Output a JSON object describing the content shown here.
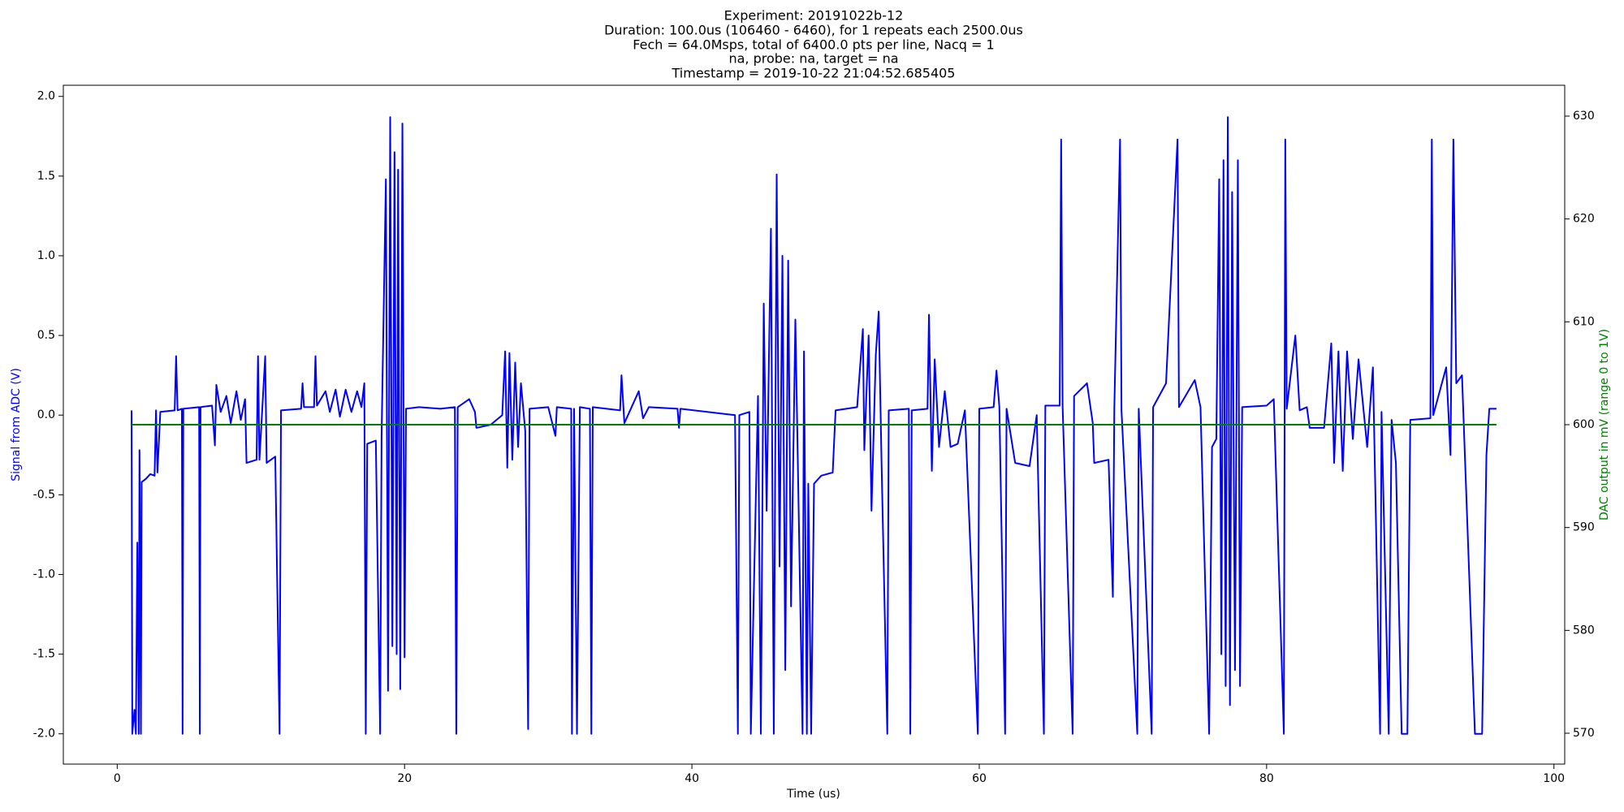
{
  "chart_data": {
    "type": "line",
    "title": [
      "Experiment: 20191022b-12",
      "Duration: 100.0us (106460 - 6460), for 1 repeats each 2500.0us",
      "Fech = 64.0Msps, total of 6400.0 pts per line, Nacq = 1",
      "na, probe: na, target = na",
      "Timestamp = 2019-10-22 21:04:52.685405"
    ],
    "x_label": "Time (us)",
    "y_label": "Signal from ADC (V)",
    "y_label_color": "#0000ff",
    "y2_label": "DAC output in mV (range 0 to 1V)",
    "y2_label_color": "#008000",
    "xlim": [
      -3.75,
      100.75
    ],
    "xticks": [
      0,
      20,
      40,
      60,
      80,
      100
    ],
    "ylim": [
      -2.19,
      2.07
    ],
    "yticks": [
      {
        "value": -2,
        "label": "-2.0"
      },
      {
        "value": -1.5,
        "label": "-1.5"
      },
      {
        "value": -1,
        "label": "-1.0"
      },
      {
        "value": -0.5,
        "label": "-0.5"
      },
      {
        "value": 0,
        "label": "0.0"
      },
      {
        "value": 0.5,
        "label": "0.5"
      },
      {
        "value": 1,
        "label": "1.0"
      },
      {
        "value": 1.5,
        "label": "1.5"
      },
      {
        "value": 2,
        "label": "2.0"
      }
    ],
    "y2lim": [
      567,
      633
    ],
    "y2ticks": [
      570,
      580,
      590,
      600,
      610,
      620,
      630
    ],
    "series": [
      {
        "color": "#0000ff",
        "x": [
          1.0,
          1.05,
          1.2,
          1.3,
          1.4,
          1.5,
          1.55,
          1.65,
          1.7,
          2.0,
          2.3,
          2.6,
          2.7,
          2.8,
          3.0,
          4.0,
          4.1,
          4.2,
          4.5,
          4.55,
          4.6,
          5.7,
          5.75,
          5.8,
          6.6,
          6.8,
          6.9,
          7.2,
          7.6,
          7.9,
          8.3,
          8.6,
          8.9,
          9.0,
          9.7,
          9.8,
          9.9,
          10.3,
          10.4,
          11.0,
          11.3,
          11.4,
          12.8,
          12.9,
          13.0,
          13.7,
          13.8,
          13.9,
          14.5,
          14.8,
          15.2,
          15.5,
          15.9,
          16.3,
          16.7,
          17.0,
          17.2,
          17.3,
          17.4,
          18.0,
          18.3,
          18.4,
          18.7,
          18.85,
          19.0,
          19.15,
          19.3,
          19.45,
          19.55,
          19.7,
          19.85,
          20.0,
          20.1,
          21.0,
          22.5,
          23.5,
          23.6,
          23.7,
          24.5,
          24.9,
          25.0,
          26.0,
          26.8,
          27.0,
          27.15,
          27.3,
          27.5,
          27.7,
          27.9,
          28.1,
          28.4,
          28.6,
          28.7,
          30.0,
          30.5,
          30.6,
          31.6,
          31.65,
          31.8,
          32.0,
          32.2,
          32.9,
          33.0,
          33.1,
          35.0,
          35.1,
          35.3,
          36.3,
          36.6,
          37.0,
          39.0,
          39.1,
          39.2,
          43.0,
          43.2,
          43.3,
          44.0,
          44.1,
          44.6,
          44.8,
          45.0,
          45.2,
          45.5,
          45.7,
          45.9,
          46.1,
          46.3,
          46.5,
          46.7,
          46.9,
          47.2,
          47.7,
          47.8,
          48.0,
          48.1,
          48.3,
          48.5,
          49.0,
          49.8,
          50.0,
          51.5,
          51.9,
          52.0,
          52.3,
          52.5,
          52.8,
          53.0,
          53.2,
          53.6,
          53.7,
          55.1,
          55.2,
          55.3,
          56.4,
          56.5,
          56.7,
          56.9,
          57.2,
          57.6,
          58.0,
          58.5,
          59.0,
          59.9,
          60.0,
          61.0,
          61.2,
          61.4,
          61.8,
          61.9,
          62.5,
          63.5,
          64.0,
          64.5,
          64.6,
          65.6,
          65.7,
          65.8,
          66.5,
          66.6,
          67.5,
          67.9,
          68.0,
          69.0,
          69.3,
          69.4,
          69.8,
          69.9,
          71.0,
          71.1,
          72.0,
          72.1,
          73.0,
          73.8,
          73.9,
          75.0,
          75.4,
          76.0,
          76.2,
          76.5,
          76.7,
          76.85,
          77.0,
          77.15,
          77.3,
          77.45,
          77.6,
          77.8,
          78.0,
          78.15,
          78.3,
          80.0,
          80.5,
          81.2,
          81.3,
          81.4,
          82.0,
          82.3,
          82.8,
          83.0,
          84.0,
          84.5,
          84.7,
          85.0,
          85.3,
          85.6,
          86.0,
          86.4,
          87.0,
          87.4,
          87.9,
          88.0,
          88.5,
          88.7,
          89.0,
          89.4,
          89.8,
          90.0,
          91.4,
          91.5,
          91.6,
          92.5,
          92.8,
          93.0,
          93.2,
          93.6,
          94.5,
          95.0,
          95.3,
          95.5,
          96.0
        ],
        "values": [
          0.03,
          -2,
          -1.85,
          -2,
          -0.8,
          -2,
          -0.22,
          -2,
          -0.42,
          -0.4,
          -0.37,
          -0.38,
          0.03,
          -0.36,
          0.02,
          0.03,
          0.37,
          0.03,
          0.04,
          -2,
          0.04,
          0.05,
          -2,
          0.05,
          0.06,
          -0.19,
          0.19,
          0.02,
          0.12,
          -0.05,
          0.15,
          -0.03,
          0.1,
          -0.3,
          -0.28,
          0.37,
          -0.28,
          0.37,
          -0.3,
          -0.26,
          -2,
          0.03,
          0.04,
          0.2,
          0.05,
          0.05,
          0.37,
          0.06,
          0.15,
          0.02,
          0.16,
          -0.01,
          0.16,
          0.02,
          0.15,
          0.05,
          0.2,
          -2,
          -0.18,
          -0.16,
          -2,
          -0.13,
          1.48,
          -1.73,
          1.87,
          -1.45,
          1.65,
          -1.5,
          1.54,
          -1.72,
          1.83,
          -1.52,
          0.04,
          0.05,
          0.04,
          0.05,
          -2,
          0.05,
          0.1,
          0.02,
          -0.08,
          -0.06,
          0.0,
          0.4,
          -0.33,
          0.39,
          -0.28,
          0.33,
          -0.2,
          0.2,
          -0.1,
          -1.97,
          0.04,
          0.05,
          -0.13,
          0.05,
          0.04,
          -2,
          0.04,
          -2,
          0.05,
          0.04,
          -2,
          0.05,
          0.03,
          0.25,
          -0.05,
          0.15,
          -0.02,
          0.05,
          0.04,
          -0.08,
          0.04,
          0.0,
          -2,
          0.0,
          0.02,
          -2,
          0.12,
          -2,
          0.7,
          -0.6,
          1.17,
          -2,
          1.51,
          -0.95,
          1.0,
          -1.6,
          0.97,
          -1.2,
          0.6,
          -2,
          0.4,
          -2,
          -0.43,
          -2,
          -0.43,
          -0.38,
          -0.36,
          0.03,
          0.05,
          0.54,
          -0.22,
          0.5,
          -0.6,
          0.38,
          0.65,
          -0.3,
          -2,
          0.03,
          0.04,
          -2,
          0.03,
          0.04,
          0.63,
          -0.35,
          0.35,
          -0.2,
          0.15,
          -0.2,
          -0.18,
          0.03,
          -2,
          0.04,
          0.05,
          0.28,
          0.05,
          -2,
          0.04,
          -0.3,
          -0.32,
          0.0,
          -2,
          0.06,
          0.06,
          1.73,
          0.06,
          -2,
          0.12,
          0.2,
          -0.05,
          -0.3,
          -0.28,
          -1.14,
          0.04,
          1.73,
          0.03,
          -2,
          0.04,
          -2,
          0.05,
          0.2,
          1.73,
          0.05,
          0.22,
          0.05,
          -2,
          -0.2,
          -0.15,
          1.48,
          -1.5,
          1.6,
          -1.7,
          1.87,
          -1.82,
          1.4,
          -1.6,
          1.6,
          -1.7,
          0.05,
          0.06,
          0.1,
          -2,
          1.73,
          0.04,
          0.5,
          0.03,
          0.05,
          -0.08,
          -0.08,
          0.45,
          -0.3,
          0.4,
          -0.35,
          0.4,
          -0.15,
          0.35,
          -0.2,
          0.3,
          -2,
          0.02,
          -2,
          -0.03,
          -0.3,
          -2,
          -2,
          -0.03,
          -0.02,
          1.73,
          0.0,
          0.3,
          -0.25,
          1.73,
          0.2,
          0.25,
          -2,
          -2,
          -0.25,
          0.04,
          0.04
        ]
      },
      {
        "color": "#008000",
        "axis": "y2",
        "x": [
          1.0,
          96.0
        ],
        "values": [
          600,
          600
        ]
      }
    ]
  }
}
